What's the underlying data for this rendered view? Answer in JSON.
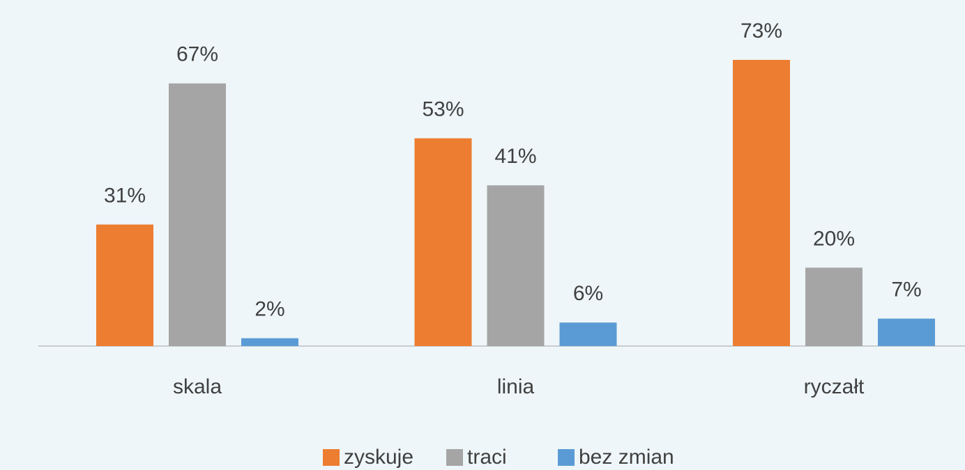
{
  "chart_data": {
    "type": "bar",
    "categories": [
      "skala",
      "linia",
      "ryczałt"
    ],
    "series": [
      {
        "name": "zyskuje",
        "color": "#ed7d31",
        "values": [
          31,
          53,
          73
        ],
        "value_labels": [
          "31%",
          "53%",
          "73%"
        ]
      },
      {
        "name": "traci",
        "color": "#a5a5a5",
        "values": [
          67,
          41,
          20
        ],
        "value_labels": [
          "67%",
          "41%",
          "20%"
        ]
      },
      {
        "name": "bez zmian",
        "color": "#5b9bd5",
        "values": [
          2,
          6,
          7
        ],
        "value_labels": [
          "2%",
          "6%",
          "7%"
        ]
      }
    ],
    "legend": "bottom"
  }
}
